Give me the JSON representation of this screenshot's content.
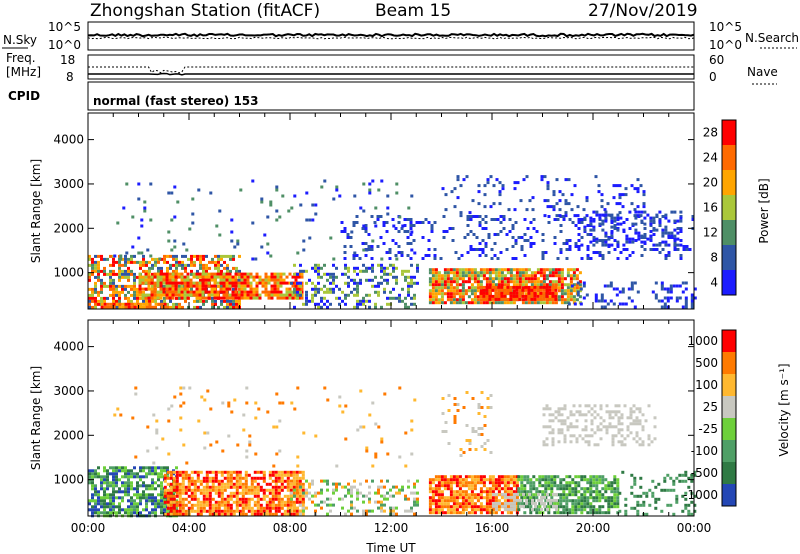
{
  "header": {
    "station": "Zhongshan Station (fitACF)",
    "beam": "Beam 15",
    "date": "27/Nov/2019"
  },
  "top_panels": {
    "nsky_label": "N.Sky",
    "nsky_ticks": [
      "10^5",
      "10^0"
    ],
    "nsearch_label": "N.Search",
    "nsearch_ticks": [
      "10^5",
      "10^0"
    ],
    "freq_label_1": "Freq.",
    "freq_label_2": "[MHz]",
    "freq_ticks": [
      "18",
      "8"
    ],
    "nave_label": "Nave",
    "nave_ticks": [
      "60",
      "0"
    ],
    "cpid_label": "CPID",
    "cpid_text": "normal (fast stereo) 153"
  },
  "chart_data": [
    {
      "type": "heatmap",
      "name": "power",
      "ylabel": "Slant Range [km]",
      "xlabel": "",
      "y_ticks": [
        "1000",
        "2000",
        "3000",
        "4000"
      ],
      "ylim": [
        180,
        4600
      ],
      "colorbar_label": "Power [dB]",
      "colorbar_ticks": [
        "4",
        "8",
        "12",
        "16",
        "20",
        "24",
        "28"
      ],
      "colors": [
        "#1c1cff",
        "#2f56a6",
        "#4f8f66",
        "#aac73a",
        "#ffa500",
        "#ff6a00",
        "#ff0000"
      ],
      "scatter_bands": [
        {
          "x0": 0.0,
          "x1": 6.0,
          "y0": 200,
          "y1": 1400,
          "density": 0.6,
          "levels": [
            1,
            6
          ]
        },
        {
          "x0": 2.0,
          "x1": 8.5,
          "y0": 450,
          "y1": 1000,
          "density": 0.85,
          "levels": [
            3,
            6
          ]
        },
        {
          "x0": 0.5,
          "x1": 3.0,
          "y0": 200,
          "y1": 320,
          "density": 0.8,
          "levels": [
            4,
            6
          ]
        },
        {
          "x0": 8.0,
          "x1": 13.0,
          "y0": 250,
          "y1": 1200,
          "density": 0.35,
          "levels": [
            0,
            3
          ]
        },
        {
          "x0": 13.5,
          "x1": 19.5,
          "y0": 300,
          "y1": 1100,
          "density": 0.85,
          "levels": [
            2,
            6
          ]
        },
        {
          "x0": 15.5,
          "x1": 18.5,
          "y0": 400,
          "y1": 700,
          "density": 0.9,
          "levels": [
            5,
            6
          ]
        },
        {
          "x0": 10.0,
          "x1": 24.0,
          "y0": 1300,
          "y1": 2300,
          "density": 0.18,
          "levels": [
            0,
            1
          ]
        },
        {
          "x0": 14.0,
          "x1": 22.0,
          "y0": 2300,
          "y1": 3200,
          "density": 0.15,
          "levels": [
            0,
            1
          ]
        },
        {
          "x0": 19.5,
          "x1": 23.5,
          "y0": 1600,
          "y1": 2400,
          "density": 0.3,
          "levels": [
            0,
            1
          ]
        },
        {
          "x0": 1.0,
          "x1": 13.0,
          "y0": 1300,
          "y1": 3100,
          "density": 0.04,
          "levels": [
            0,
            2
          ]
        },
        {
          "x0": 19.0,
          "x1": 24.0,
          "y0": 250,
          "y1": 800,
          "density": 0.25,
          "levels": [
            0,
            1
          ]
        }
      ]
    },
    {
      "type": "heatmap",
      "name": "velocity",
      "ylabel": "Slant Range [km]",
      "xlabel": "Time UT",
      "x_ticks": [
        "00:00",
        "04:00",
        "08:00",
        "12:00",
        "16:00",
        "20:00",
        "00:00"
      ],
      "y_ticks": [
        "1000",
        "2000",
        "3000",
        "4000"
      ],
      "ylim": [
        180,
        4600
      ],
      "colorbar_label": "Velocity [m s⁻¹]",
      "colorbar_ticks": [
        "1000",
        "500",
        "100",
        "25",
        "-25",
        "-100",
        "-500",
        "-1000"
      ],
      "colors": [
        "#2447b5",
        "#2f7a44",
        "#4f9f66",
        "#6dcf3a",
        "#c8c8c0",
        "#ffb830",
        "#ff7a00",
        "#ff0000"
      ],
      "scatter_bands": [
        {
          "x0": 0.0,
          "x1": 3.5,
          "y0": 200,
          "y1": 1300,
          "density": 0.7,
          "levels": [
            0,
            3
          ]
        },
        {
          "x0": 3.0,
          "x1": 8.5,
          "y0": 250,
          "y1": 1200,
          "density": 0.8,
          "levels": [
            5,
            7
          ]
        },
        {
          "x0": 8.0,
          "x1": 13.0,
          "y0": 250,
          "y1": 1000,
          "density": 0.35,
          "levels": [
            2,
            6
          ]
        },
        {
          "x0": 13.5,
          "x1": 17.0,
          "y0": 250,
          "y1": 1100,
          "density": 0.85,
          "levels": [
            5,
            7
          ]
        },
        {
          "x0": 17.0,
          "x1": 21.0,
          "y0": 250,
          "y1": 1100,
          "density": 0.75,
          "levels": [
            1,
            3
          ]
        },
        {
          "x0": 16.0,
          "x1": 18.5,
          "y0": 300,
          "y1": 700,
          "density": 0.5,
          "levels": [
            4,
            4
          ]
        },
        {
          "x0": 14.0,
          "x1": 16.0,
          "y0": 1500,
          "y1": 3000,
          "density": 0.12,
          "levels": [
            4,
            6
          ]
        },
        {
          "x0": 18.0,
          "x1": 22.5,
          "y0": 1800,
          "y1": 2700,
          "density": 0.35,
          "levels": [
            4,
            4
          ]
        },
        {
          "x0": 21.0,
          "x1": 24.0,
          "y0": 250,
          "y1": 1200,
          "density": 0.25,
          "levels": [
            1,
            2
          ]
        },
        {
          "x0": 1.0,
          "x1": 13.0,
          "y0": 1300,
          "y1": 3100,
          "density": 0.03,
          "levels": [
            4,
            6
          ]
        }
      ]
    }
  ]
}
